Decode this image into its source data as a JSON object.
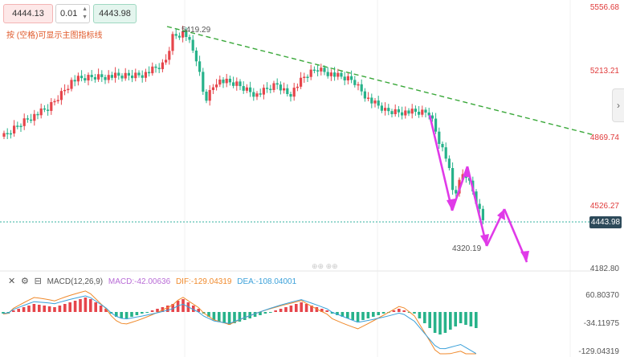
{
  "toolbar": {
    "sell_price": "4444.13",
    "step_value": "0.01",
    "buy_price": "4443.98",
    "hint": "按 (空格)可显示主图指标线"
  },
  "price_axis": {
    "labels": [
      "5556.68",
      "5213.21",
      "4869.74",
      "4526.27",
      "4182.80"
    ],
    "current_price": "4443.98"
  },
  "annotations": {
    "high": "5419.29",
    "low": "4320.19"
  },
  "macd": {
    "title": "MACD(12,26,9)",
    "macd": "MACD:-42.00636",
    "dif": "DIF:-129.04319",
    "dea": "DEA:-108.04001",
    "axis_labels": [
      "60.80370",
      "-34.11975",
      "-129.04319"
    ]
  },
  "icons": [
    "close-icon",
    "settings-icon",
    "box-icon",
    "chevron-right-icon"
  ],
  "colors": {
    "up": "#e6454b",
    "down": "#27b28a",
    "trendline": "#3aa83a",
    "projection": "#e03ae8",
    "dif": "#f08a2c",
    "dea": "#3aa0d9"
  }
}
